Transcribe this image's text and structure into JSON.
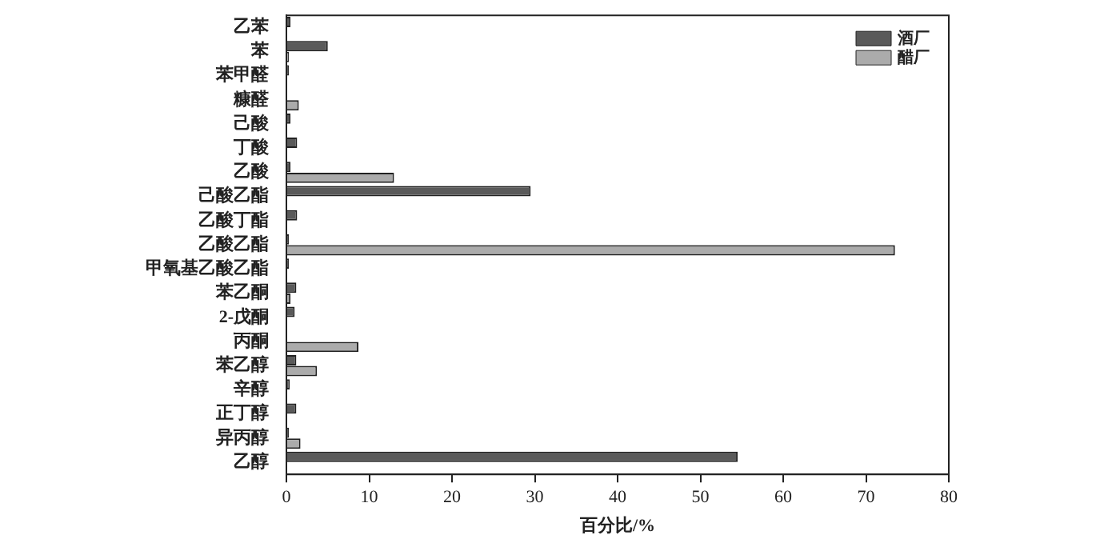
{
  "chart_data": {
    "type": "bar",
    "orientation": "horizontal",
    "xlabel": "百分比/%",
    "categories": [
      "乙苯",
      "苯",
      "苯甲醛",
      "糠醛",
      "己酸",
      "丁酸",
      "乙酸",
      "己酸乙酯",
      "乙酸丁酯",
      "乙酸乙酯",
      "甲氧基乙酸乙酯",
      "苯乙酮",
      "2-戊酮",
      "丙酮",
      "苯乙醇",
      "辛醇",
      "正丁醇",
      "异丙醇",
      "乙醇"
    ],
    "series": [
      {
        "name": "酒厂",
        "color": "#5a5a5a",
        "values": [
          0.5,
          5,
          0.3,
          0.1,
          0.5,
          1.3,
          0.5,
          29.5,
          1.3,
          0.3,
          0.3,
          1.2,
          1.0,
          0,
          1.2,
          0.4,
          1.2,
          0.3,
          54.5
        ]
      },
      {
        "name": "醋厂",
        "color": "#ababab",
        "values": [
          null,
          0.3,
          null,
          1.5,
          null,
          0,
          13,
          0,
          0,
          73.5,
          null,
          0.5,
          0,
          8.7,
          3.7,
          0,
          0,
          1.7,
          0
        ]
      }
    ],
    "xlim": [
      0,
      80
    ],
    "xticks": [
      0,
      10,
      20,
      30,
      40,
      50,
      60,
      70,
      80
    ],
    "grid": false,
    "legend": "top right"
  }
}
